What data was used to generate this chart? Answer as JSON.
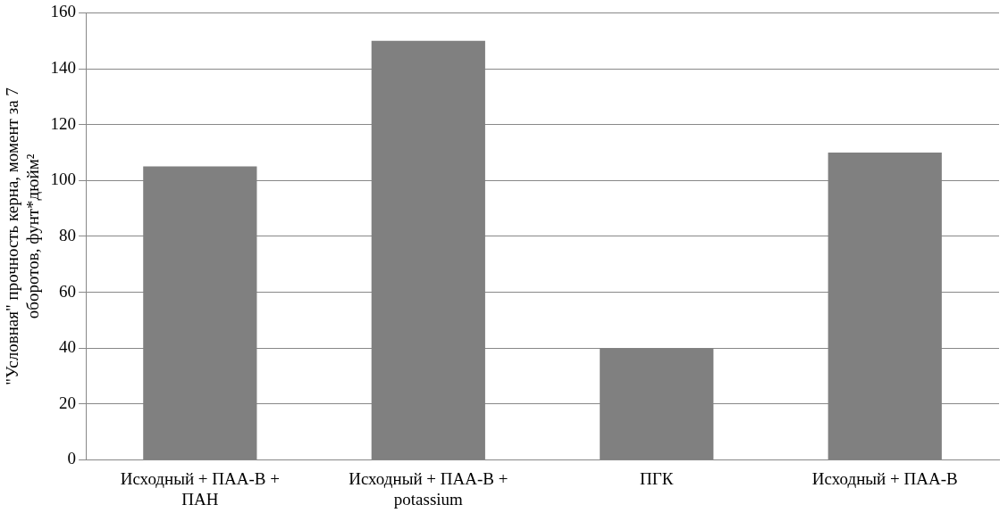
{
  "chart_data": {
    "type": "bar",
    "ylabel": "\"Условная\" прочность керна, момент за 7 оборотов, фунт*дюйм²",
    "categories": [
      "Исходный + ПАА-В + ПАН",
      "Исходный + ПАА-В + potassium",
      "ПГК",
      "Исходный + ПАА-В"
    ],
    "values": [
      105,
      150,
      40,
      110
    ],
    "color": "#808080",
    "ylim": [
      0,
      160
    ],
    "yticks": [
      0,
      20,
      40,
      60,
      80,
      100,
      120,
      140,
      160
    ],
    "grid": "y"
  }
}
